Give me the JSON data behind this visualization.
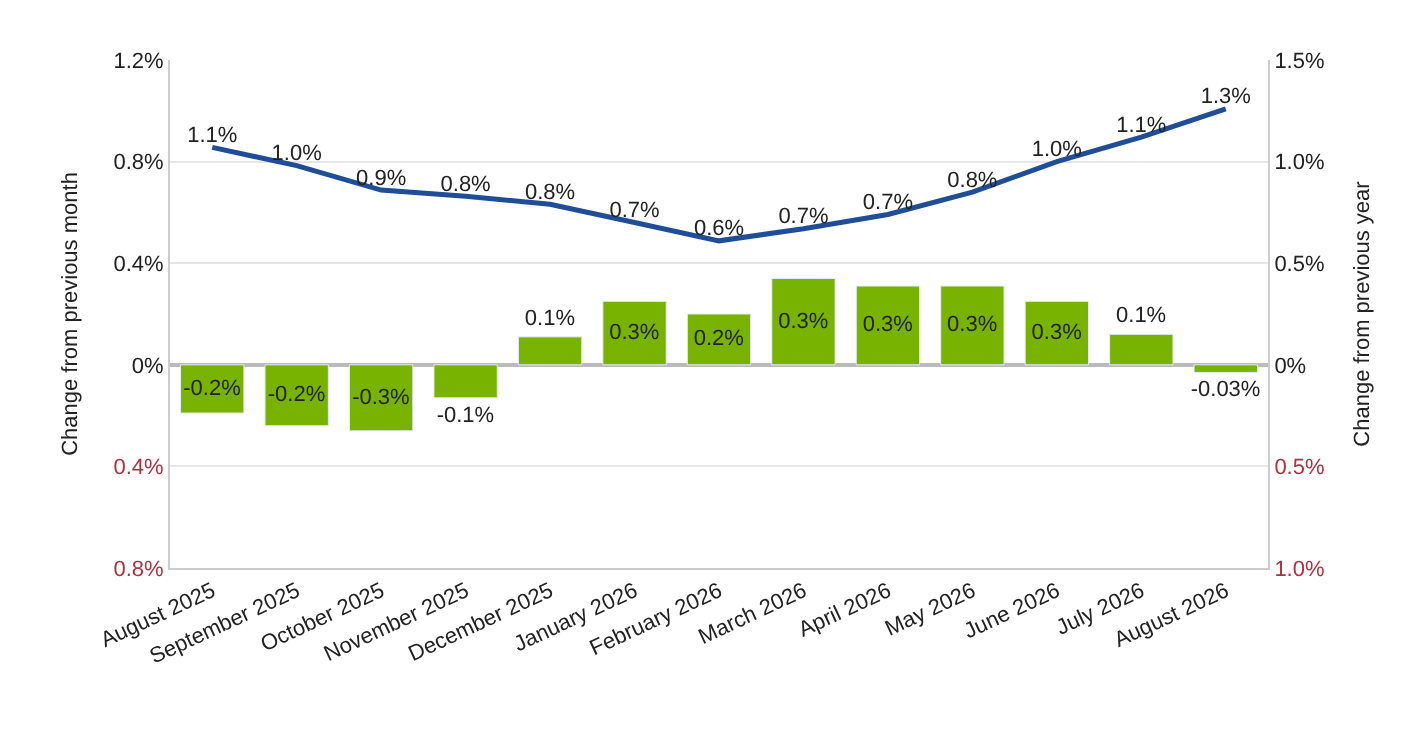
{
  "chart_data": {
    "type": "bar",
    "ylabel": "Change from previous month",
    "y2label": "Change from previous year",
    "categories": [
      "August 2025",
      "September 2025",
      "October 2025",
      "November 2025",
      "December 2025",
      "January 2026",
      "February 2026",
      "March 2026",
      "April 2026",
      "May 2026",
      "June 2026",
      "July 2026",
      "August 2026"
    ],
    "series": [
      {
        "color": "#77b300",
        "values": [
          -0.19,
          -0.24,
          -0.26,
          -0.13,
          0.11,
          0.25,
          0.2,
          0.34,
          0.31,
          0.31,
          0.25,
          0.12,
          -0.03
        ],
        "value_labels": [
          "-0.2%",
          "-0.2%",
          "-0.3%",
          "-0.1%",
          "0.1%",
          "0.3%",
          "0.2%",
          "0.3%",
          "0.3%",
          "0.3%",
          "0.3%",
          "0.1%",
          "-0.03%"
        ]
      },
      {
        "type": "line",
        "axis": "y2",
        "color": "#1f4e96",
        "values": [
          1.07,
          0.98,
          0.86,
          0.83,
          0.79,
          0.7,
          0.61,
          0.67,
          0.74,
          0.85,
          1.0,
          1.12,
          1.26
        ],
        "value_labels": [
          "1.1%",
          "1.0%",
          "0.9%",
          "0.8%",
          "0.8%",
          "0.7%",
          "0.6%",
          "0.7%",
          "0.7%",
          "0.8%",
          "1.0%",
          "1.1%",
          "1.3%"
        ]
      }
    ],
    "ylim": [
      -0.8,
      1.2
    ],
    "yticks": [
      {
        "value": -0.8,
        "label": "0.8%"
      },
      {
        "value": -0.4,
        "label": "0.4%"
      },
      {
        "value": 0,
        "label": "0%"
      },
      {
        "value": 0.4,
        "label": "0.4%"
      },
      {
        "value": 0.8,
        "label": "0.8%"
      },
      {
        "value": 1.2,
        "label": "1.2%"
      }
    ],
    "y2lim": [
      -1.0,
      1.5
    ],
    "y2ticks": [
      {
        "value": -1.0,
        "label": "1.0%"
      },
      {
        "value": -0.5,
        "label": "0.5%"
      },
      {
        "value": 0,
        "label": "0%"
      },
      {
        "value": 0.5,
        "label": "0.5%"
      },
      {
        "value": 1.0,
        "label": "1.0%"
      },
      {
        "value": 1.5,
        "label": "1.5%"
      }
    ],
    "grid": "y",
    "marker": "none",
    "line_style": "solid"
  }
}
